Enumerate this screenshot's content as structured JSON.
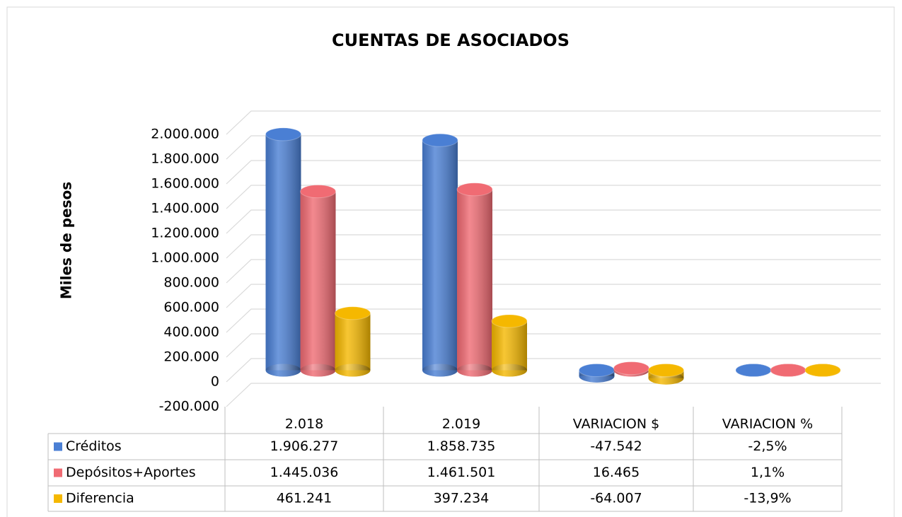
{
  "chart_data": {
    "type": "bar3d",
    "title": "CUENTAS DE ASOCIADOS",
    "y_label": "Miles de pesos",
    "categories": [
      "2.018",
      "2.019",
      "VARIACION $",
      "VARIACION %"
    ],
    "series": [
      {
        "name": "Créditos",
        "color": "#4a7fd4",
        "values": [
          1906277,
          1858735,
          -47542,
          -2.5
        ],
        "value_labels": [
          "1.906.277",
          "1.858.735",
          "-47.542",
          "-2,5%"
        ]
      },
      {
        "name": "Depósitos+Aportes",
        "color": "#f06b73",
        "values": [
          1445036,
          1461501,
          16465,
          1.1
        ],
        "value_labels": [
          "1.445.036",
          "1.461.501",
          "16.465",
          "1,1%"
        ]
      },
      {
        "name": "Diferencia",
        "color": "#f5b800",
        "values": [
          461241,
          397234,
          -64007,
          -13.9
        ],
        "value_labels": [
          "461.241",
          "397.234",
          "-64.007",
          "-13,9%"
        ]
      }
    ],
    "ylim": [
      -200000,
      2000000
    ],
    "yticks": [
      {
        "value": -200000,
        "label": "-200.000"
      },
      0,
      {
        "value": 200000,
        "label": "200.000"
      },
      {
        "value": 400000,
        "label": "400.000"
      },
      {
        "value": 600000,
        "label": "600.000"
      },
      {
        "value": 800000,
        "label": "800.000"
      },
      {
        "value": 1000000,
        "label": "1.000.000"
      },
      {
        "value": 1200000,
        "label": "1.200.000"
      },
      {
        "value": 1400000,
        "label": "1.400.000"
      },
      {
        "value": 1600000,
        "label": "1.600.000"
      },
      {
        "value": 1800000,
        "label": "1.800.000"
      },
      {
        "value": 2000000,
        "label": "2.000.000"
      }
    ],
    "grid": true,
    "data_table": true
  }
}
